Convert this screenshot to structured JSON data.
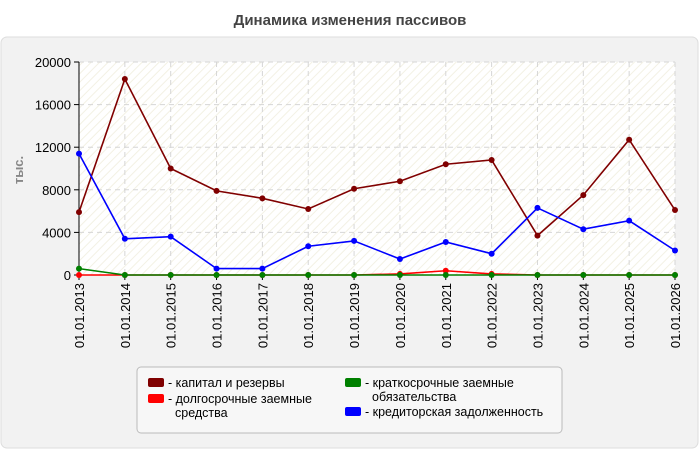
{
  "chart_data": {
    "type": "line",
    "title": "Динамика изменения пассивов",
    "xlabel": "",
    "ylabel": "тыс.",
    "ylim": [
      0,
      20000
    ],
    "yticks": [
      0,
      4000,
      8000,
      12000,
      16000,
      20000
    ],
    "grid": true,
    "legend_position": "bottom",
    "categories": [
      "01.01.2013",
      "01.01.2014",
      "01.01.2015",
      "01.01.2016",
      "01.01.2017",
      "01.01.2018",
      "01.01.2019",
      "01.01.2020",
      "01.01.2021",
      "01.01.2022",
      "01.01.2023",
      "01.01.2024",
      "01.01.2025",
      "01.01.2026"
    ],
    "series": [
      {
        "name": "капитал и резервы",
        "color": "#800000",
        "values": [
          5900,
          18400,
          10000,
          7900,
          7200,
          6200,
          8100,
          8800,
          10400,
          10800,
          3700,
          7500,
          12700,
          6100
        ]
      },
      {
        "name": "долгосрочные заемные средства",
        "color": "#ff0000",
        "values": [
          0,
          0,
          0,
          0,
          0,
          0,
          0,
          100,
          400,
          100,
          0,
          0,
          0,
          0
        ]
      },
      {
        "name": "краткосрочные заемные обязательства",
        "color": "#008000",
        "values": [
          600,
          0,
          0,
          0,
          0,
          0,
          0,
          0,
          0,
          0,
          0,
          0,
          0,
          0
        ]
      },
      {
        "name": "кредиторская задолженность",
        "color": "#0000ff",
        "values": [
          11400,
          3400,
          3600,
          600,
          600,
          2700,
          3200,
          1500,
          3100,
          2000,
          6300,
          4300,
          5100,
          2300
        ]
      }
    ],
    "legend_labels": [
      [
        "капитал и резервы"
      ],
      [
        "долгосрочные заемные",
        "средства"
      ],
      [
        "краткосрочные заемные",
        "обязательства"
      ],
      [
        "кредиторская задолженность"
      ]
    ]
  }
}
